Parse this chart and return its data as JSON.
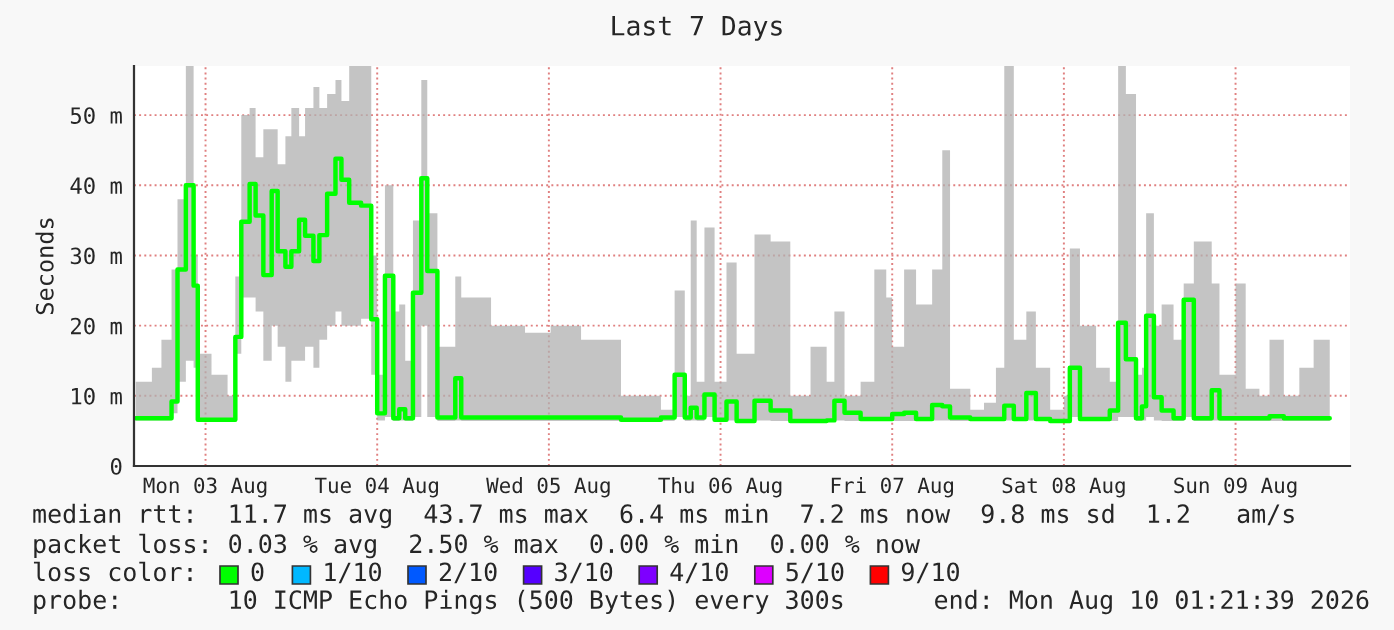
{
  "chart_data": {
    "type": "step",
    "title": "Last 7 Days",
    "ylabel": "Seconds",
    "x": [
      "2026-08-03T02:15",
      "2026-08-03T04:30",
      "2026-08-03T05:50",
      "2026-08-03T07:15",
      "2026-08-03T08:05",
      "2026-08-03T09:15",
      "2026-08-03T10:20",
      "2026-08-03T10:55",
      "2026-08-03T12:50",
      "2026-08-03T15:05",
      "2026-08-03T16:10",
      "2026-08-03T17:00",
      "2026-08-03T18:10",
      "2026-08-03T19:00",
      "2026-08-03T20:05",
      "2026-08-03T21:15",
      "2026-08-03T22:05",
      "2026-08-03T23:10",
      "2026-08-04T00:00",
      "2026-08-04T01:05",
      "2026-08-04T01:55",
      "2026-08-04T03:05",
      "2026-08-04T03:55",
      "2026-08-04T05:00",
      "2026-08-04T06:10",
      "2026-08-04T07:00",
      "2026-08-04T08:05",
      "2026-08-04T09:45",
      "2026-08-04T11:10",
      "2026-08-04T12:00",
      "2026-08-04T13:05",
      "2026-08-04T14:15",
      "2026-08-04T15:05",
      "2026-08-04T15:55",
      "2026-08-04T17:00",
      "2026-08-04T18:10",
      "2026-08-04T19:00",
      "2026-08-04T20:25",
      "2026-08-04T22:55",
      "2026-08-04T23:45",
      "2026-08-05T03:55",
      "2026-08-05T08:40",
      "2026-08-05T12:15",
      "2026-08-05T16:30",
      "2026-08-05T22:05",
      "2026-08-06T03:40",
      "2026-08-06T05:35",
      "2026-08-06T07:00",
      "2026-08-06T07:50",
      "2026-08-06T08:40",
      "2026-08-06T09:45",
      "2026-08-06T11:10",
      "2026-08-06T12:50",
      "2026-08-06T14:15",
      "2026-08-06T16:45",
      "2026-08-06T19:00",
      "2026-08-06T21:45",
      "2026-08-07T00:35",
      "2026-08-07T02:50",
      "2026-08-07T03:55",
      "2026-08-07T05:20",
      "2026-08-07T07:35",
      "2026-08-07T09:30",
      "2026-08-07T11:10",
      "2026-08-07T12:00",
      "2026-08-07T13:40",
      "2026-08-07T15:20",
      "2026-08-07T17:35",
      "2026-08-07T19:00",
      "2026-08-07T20:05",
      "2026-08-07T22:55",
      "2026-08-08T00:50",
      "2026-08-08T02:30",
      "2026-08-08T03:40",
      "2026-08-08T05:00",
      "2026-08-08T06:45",
      "2026-08-08T08:05",
      "2026-08-08T10:05",
      "2026-08-08T12:00",
      "2026-08-08T12:50",
      "2026-08-08T14:15",
      "2026-08-08T16:30",
      "2026-08-08T18:25",
      "2026-08-08T19:35",
      "2026-08-08T20:40",
      "2026-08-08T22:05",
      "2026-08-08T22:55",
      "2026-08-08T23:30",
      "2026-08-09T00:35",
      "2026-08-09T01:40",
      "2026-08-09T03:20",
      "2026-08-09T04:45",
      "2026-08-09T06:10",
      "2026-08-09T08:40",
      "2026-08-09T09:45",
      "2026-08-09T12:00",
      "2026-08-09T13:25",
      "2026-08-09T15:20",
      "2026-08-09T16:45",
      "2026-08-09T18:45",
      "2026-08-09T20:55",
      "2026-08-09T22:55",
      "2026-08-10T01:10"
    ],
    "series": [
      {
        "color": "#00ff00",
        "values": [
          6.8,
          6.8,
          6.8,
          9.2,
          28,
          40,
          25.7,
          6.6,
          6.6,
          6.6,
          18.4,
          34.8,
          40.2,
          35.7,
          27.2,
          39.2,
          30.6,
          28.4,
          30.6,
          35.1,
          32.8,
          29.2,
          32.9,
          38.8,
          43.8,
          40.8,
          37.5,
          37.1,
          20.9,
          7.5,
          27.1,
          6.8,
          8.1,
          6.8,
          24.7,
          41,
          27.8,
          6.9,
          12.5,
          6.9,
          6.9,
          6.9,
          6.9,
          6.9,
          6.6,
          6.9,
          13,
          6.9,
          8.3,
          6.9,
          10.2,
          6.6,
          9.2,
          6.4,
          9.3,
          7.9,
          6.4,
          6.4,
          6.5,
          9.3,
          7.6,
          6.7,
          6.7,
          6.7,
          7.4,
          7.6,
          6.7,
          8.7,
          8.5,
          6.9,
          6.7,
          6.7,
          6.7,
          8.6,
          6.7,
          10.4,
          6.7,
          6.4,
          6.4,
          14,
          6.7,
          6.7,
          7.9,
          20.4,
          15.2,
          6.8,
          8.5,
          21.4,
          9.8,
          7.9,
          6.8,
          23.7,
          6.8,
          10.8,
          6.8,
          6.8,
          6.8,
          6.8,
          7.1,
          6.8,
          6.8,
          6.8,
          6.8
        ],
        "lower": [
          6.5,
          6.5,
          6.5,
          7.5,
          12,
          15,
          14,
          6.5,
          6.4,
          6.4,
          16,
          24,
          24,
          22,
          15,
          20,
          17,
          12,
          15,
          15,
          17,
          14,
          18,
          20,
          22,
          20,
          20,
          21,
          13,
          6.5,
          7,
          6.4,
          6.5,
          6.4,
          7,
          20,
          7,
          6.4,
          6.5,
          6.4,
          6.4,
          6.4,
          6.4,
          6.4,
          6.3,
          6.4,
          7,
          6.4,
          6.5,
          6.4,
          7,
          6.3,
          6.5,
          6.3,
          6.5,
          6.4,
          6.3,
          6.3,
          6.3,
          6.5,
          6.4,
          6.4,
          6.4,
          6.4,
          6.4,
          6.4,
          6.4,
          6.5,
          6.5,
          6.4,
          6.4,
          6.4,
          6.4,
          6.5,
          6.4,
          6.5,
          6.4,
          6.3,
          6.3,
          7,
          6.4,
          6.4,
          6.4,
          7,
          7,
          6.4,
          6.5,
          7,
          6.5,
          6.4,
          6.4,
          7,
          6.4,
          6.5,
          6.4,
          6.4,
          6.4,
          6.4,
          6.4,
          6.4,
          6.4,
          6.4,
          6.4
        ],
        "upper": [
          12,
          14,
          18,
          28,
          38,
          57,
          30,
          16,
          13,
          10,
          27,
          50,
          51,
          44,
          48,
          48,
          43,
          47,
          51,
          47,
          51,
          54,
          51,
          53,
          55,
          52,
          57,
          57,
          30,
          13,
          40,
          22,
          23,
          15,
          35,
          55,
          36,
          17,
          27,
          24,
          20,
          19,
          20,
          18,
          10,
          8,
          25,
          10,
          35,
          12,
          34,
          12,
          29,
          16,
          33,
          32,
          10,
          17,
          12,
          22,
          10,
          12,
          28,
          24,
          17,
          28,
          23,
          28,
          45,
          11,
          8,
          9,
          14,
          57,
          18,
          22,
          14,
          8,
          10,
          31,
          20,
          14,
          12,
          57,
          53,
          13,
          14,
          36,
          20,
          23,
          18,
          26,
          32,
          26,
          13,
          26,
          11,
          10,
          18,
          10,
          14,
          18,
          14
        ]
      }
    ],
    "xlim": [
      "2026-08-03T02:00",
      "2026-08-10T04:00"
    ],
    "xticks": [
      {
        "value": "2026-08-03T12:00",
        "label": "Mon 03 Aug"
      },
      {
        "value": "2026-08-04T12:00",
        "label": "Tue 04 Aug"
      },
      {
        "value": "2026-08-05T12:00",
        "label": "Wed 05 Aug"
      },
      {
        "value": "2026-08-06T12:00",
        "label": "Thu 06 Aug"
      },
      {
        "value": "2026-08-07T12:00",
        "label": "Fri 07 Aug"
      },
      {
        "value": "2026-08-08T12:00",
        "label": "Sat 08 Aug"
      },
      {
        "value": "2026-08-09T12:00",
        "label": "Sun 09 Aug"
      }
    ],
    "ylim": [
      0,
      57
    ],
    "yticks": [
      0,
      {
        "value": 10,
        "label": "10 m"
      },
      {
        "value": 20,
        "label": "20 m"
      },
      {
        "value": 30,
        "label": "30 m"
      },
      {
        "value": 40,
        "label": "40 m"
      },
      {
        "value": 50,
        "label": "50 m"
      }
    ],
    "grid": true,
    "line_style": "solid",
    "annotations": [
      "median rtt:  11.7 ms avg  43.7 ms max  6.4 ms min  7.2 ms now  9.8 ms sd  1.2   am/s",
      "packet loss: 0.03 % avg  2.50 % max  0.00 % min  0.00 % now",
      "loss color:",
      "0",
      "1/10",
      "2/10",
      "3/10",
      "4/10",
      "5/10",
      "9/10",
      "probe:       10 ICMP Echo Pings (500 Bytes) every 300s",
      "end: Mon Aug 10 01:21:39 2026"
    ]
  }
}
